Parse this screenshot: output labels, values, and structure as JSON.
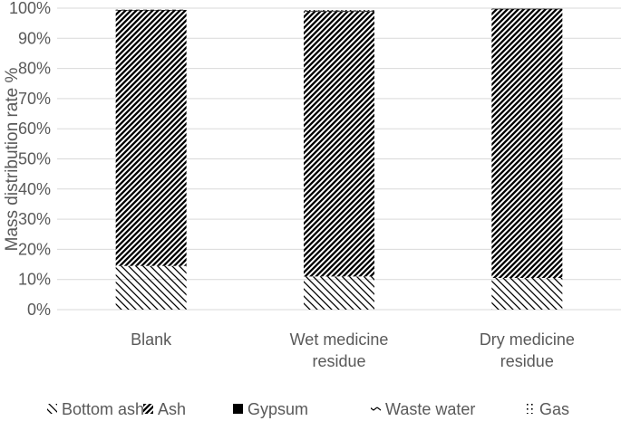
{
  "chart_data": {
    "type": "bar",
    "stacked": true,
    "title": "",
    "xlabel": "",
    "ylabel": "Mass distribution rate %",
    "ylim": [
      0,
      100
    ],
    "yticks": [
      "0%",
      "10%",
      "20%",
      "30%",
      "40%",
      "50%",
      "60%",
      "70%",
      "80%",
      "90%",
      "100%"
    ],
    "grid": true,
    "legend_position": "bottom",
    "categories": [
      [
        "Blank"
      ],
      [
        "Wet medicine",
        "residue"
      ],
      [
        "Dry medicine",
        "residue"
      ]
    ],
    "series": [
      {
        "name": "Bottom ash",
        "pattern": "diag-down-sparse",
        "values": [
          14.5,
          11.0,
          10.5
        ]
      },
      {
        "name": "Ash",
        "pattern": "diag-up-dense",
        "values": [
          84.8,
          87.9,
          89.2
        ]
      },
      {
        "name": "Gypsum",
        "pattern": "horizontal-solid",
        "values": [
          0.1,
          0.1,
          0.1
        ]
      },
      {
        "name": "Waste water",
        "pattern": "zigzag",
        "values": [
          0.1,
          0.2,
          0.1
        ]
      },
      {
        "name": "Gas",
        "pattern": "dots",
        "values": [
          0.5,
          0.8,
          0.1
        ]
      }
    ],
    "colors": {
      "axis_text": "#595959",
      "grid": "#d9d9d9",
      "ink": "#000000"
    }
  }
}
